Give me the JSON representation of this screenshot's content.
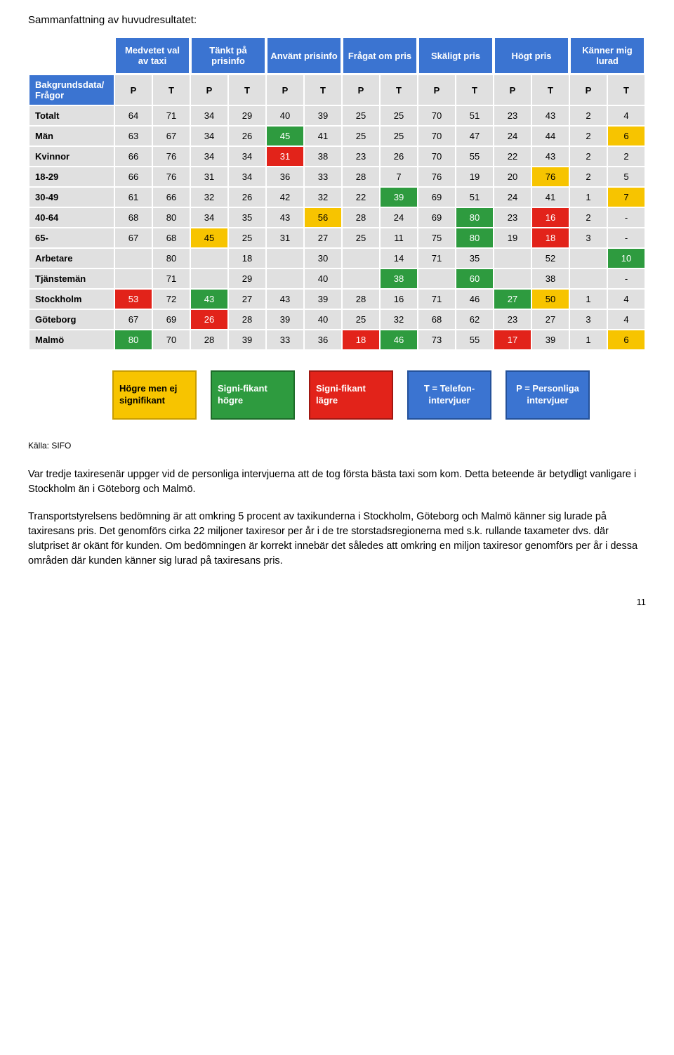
{
  "summary_title": "Sammanfattning av huvudresultatet:",
  "header_groups": [
    "Medvetet val av taxi",
    "Tänkt på prisinfo",
    "Använt prisinfo",
    "Frågat om pris",
    "Skäligt pris",
    "Högt pris",
    "Känner mig lurad"
  ],
  "row_label_header": "Bakgrundsdata/ Frågor",
  "pt_labels": [
    "P",
    "T",
    "P",
    "T",
    "P",
    "T",
    "P",
    "T",
    "P",
    "T",
    "P",
    "T",
    "P",
    "T"
  ],
  "rows": [
    {
      "label": "Totalt",
      "cells": [
        {
          "v": "64"
        },
        {
          "v": "71"
        },
        {
          "v": "34"
        },
        {
          "v": "29"
        },
        {
          "v": "40"
        },
        {
          "v": "39"
        },
        {
          "v": "25"
        },
        {
          "v": "25"
        },
        {
          "v": "70"
        },
        {
          "v": "51"
        },
        {
          "v": "23"
        },
        {
          "v": "43"
        },
        {
          "v": "2"
        },
        {
          "v": "4"
        }
      ]
    },
    {
      "label": "Män",
      "cells": [
        {
          "v": "63"
        },
        {
          "v": "67"
        },
        {
          "v": "34"
        },
        {
          "v": "26"
        },
        {
          "v": "45",
          "hl": "green"
        },
        {
          "v": "41"
        },
        {
          "v": "25"
        },
        {
          "v": "25"
        },
        {
          "v": "70"
        },
        {
          "v": "47"
        },
        {
          "v": "24"
        },
        {
          "v": "44"
        },
        {
          "v": "2"
        },
        {
          "v": "6",
          "hl": "yellow"
        }
      ]
    },
    {
      "label": "Kvinnor",
      "cells": [
        {
          "v": "66"
        },
        {
          "v": "76"
        },
        {
          "v": "34"
        },
        {
          "v": "34"
        },
        {
          "v": "31",
          "hl": "red"
        },
        {
          "v": "38"
        },
        {
          "v": "23"
        },
        {
          "v": "26"
        },
        {
          "v": "70"
        },
        {
          "v": "55"
        },
        {
          "v": "22"
        },
        {
          "v": "43"
        },
        {
          "v": "2"
        },
        {
          "v": "2"
        }
      ]
    },
    {
      "label": "18-29",
      "cells": [
        {
          "v": "66"
        },
        {
          "v": "76"
        },
        {
          "v": "31"
        },
        {
          "v": "34"
        },
        {
          "v": "36"
        },
        {
          "v": "33"
        },
        {
          "v": "28"
        },
        {
          "v": "7"
        },
        {
          "v": "76"
        },
        {
          "v": "19"
        },
        {
          "v": "20"
        },
        {
          "v": "76",
          "hl": "yellow"
        },
        {
          "v": "2"
        },
        {
          "v": "5"
        }
      ]
    },
    {
      "label": "30-49",
      "cells": [
        {
          "v": "61"
        },
        {
          "v": "66"
        },
        {
          "v": "32"
        },
        {
          "v": "26"
        },
        {
          "v": "42"
        },
        {
          "v": "32"
        },
        {
          "v": "22"
        },
        {
          "v": "39",
          "hl": "green"
        },
        {
          "v": "69"
        },
        {
          "v": "51"
        },
        {
          "v": "24"
        },
        {
          "v": "41"
        },
        {
          "v": "1"
        },
        {
          "v": "7",
          "hl": "yellow"
        }
      ]
    },
    {
      "label": "40-64",
      "cells": [
        {
          "v": "68"
        },
        {
          "v": "80"
        },
        {
          "v": "34"
        },
        {
          "v": "35"
        },
        {
          "v": "43"
        },
        {
          "v": "56",
          "hl": "yellow"
        },
        {
          "v": "28"
        },
        {
          "v": "24"
        },
        {
          "v": "69"
        },
        {
          "v": "80",
          "hl": "green"
        },
        {
          "v": "23"
        },
        {
          "v": "16",
          "hl": "red"
        },
        {
          "v": "2"
        },
        {
          "v": "-"
        }
      ]
    },
    {
      "label": "65-",
      "cells": [
        {
          "v": "67"
        },
        {
          "v": "68"
        },
        {
          "v": "45",
          "hl": "yellow"
        },
        {
          "v": "25"
        },
        {
          "v": "31"
        },
        {
          "v": "27"
        },
        {
          "v": "25"
        },
        {
          "v": "11"
        },
        {
          "v": "75"
        },
        {
          "v": "80",
          "hl": "green"
        },
        {
          "v": "19"
        },
        {
          "v": "18",
          "hl": "red"
        },
        {
          "v": "3"
        },
        {
          "v": "-"
        }
      ]
    },
    {
      "label": "Arbetare",
      "cells": [
        {
          "v": ""
        },
        {
          "v": "80"
        },
        {
          "v": ""
        },
        {
          "v": "18"
        },
        {
          "v": ""
        },
        {
          "v": "30"
        },
        {
          "v": ""
        },
        {
          "v": "14"
        },
        {
          "v": "71"
        },
        {
          "v": "35"
        },
        {
          "v": ""
        },
        {
          "v": "52"
        },
        {
          "v": ""
        },
        {
          "v": "10",
          "hl": "green"
        }
      ]
    },
    {
      "label": "Tjänstemän",
      "cells": [
        {
          "v": ""
        },
        {
          "v": "71"
        },
        {
          "v": ""
        },
        {
          "v": "29"
        },
        {
          "v": ""
        },
        {
          "v": "40"
        },
        {
          "v": ""
        },
        {
          "v": "38",
          "hl": "green"
        },
        {
          "v": ""
        },
        {
          "v": "60",
          "hl": "green"
        },
        {
          "v": ""
        },
        {
          "v": "38"
        },
        {
          "v": ""
        },
        {
          "v": "-"
        }
      ]
    },
    {
      "label": "Stockholm",
      "cells": [
        {
          "v": "53",
          "hl": "red"
        },
        {
          "v": "72"
        },
        {
          "v": "43",
          "hl": "green"
        },
        {
          "v": "27"
        },
        {
          "v": "43"
        },
        {
          "v": "39"
        },
        {
          "v": "28"
        },
        {
          "v": "16"
        },
        {
          "v": "71"
        },
        {
          "v": "46"
        },
        {
          "v": "27",
          "hl": "green"
        },
        {
          "v": "50",
          "hl": "yellow"
        },
        {
          "v": "1"
        },
        {
          "v": "4"
        }
      ]
    },
    {
      "label": "Göteborg",
      "cells": [
        {
          "v": "67"
        },
        {
          "v": "69"
        },
        {
          "v": "26",
          "hl": "red"
        },
        {
          "v": "28"
        },
        {
          "v": "39"
        },
        {
          "v": "40"
        },
        {
          "v": "25"
        },
        {
          "v": "32"
        },
        {
          "v": "68"
        },
        {
          "v": "62"
        },
        {
          "v": "23"
        },
        {
          "v": "27"
        },
        {
          "v": "3"
        },
        {
          "v": "4"
        }
      ]
    },
    {
      "label": "Malmö",
      "cells": [
        {
          "v": "80",
          "hl": "green"
        },
        {
          "v": "70"
        },
        {
          "v": "28"
        },
        {
          "v": "39"
        },
        {
          "v": "33"
        },
        {
          "v": "36"
        },
        {
          "v": "18",
          "hl": "red"
        },
        {
          "v": "46",
          "hl": "green"
        },
        {
          "v": "73"
        },
        {
          "v": "55"
        },
        {
          "v": "17",
          "hl": "red"
        },
        {
          "v": "39"
        },
        {
          "v": "1"
        },
        {
          "v": "6",
          "hl": "yellow"
        }
      ]
    }
  ],
  "legend": {
    "yellow": "Högre men ej signifikant",
    "green": "Signi-fikant högre",
    "red": "Signi-fikant lägre",
    "blue_t": "T = Telefon-intervjuer",
    "blue_p": "P = Personliga intervjuer"
  },
  "source": "Källa: SIFO",
  "para1": "Var tredje taxiresenär uppger vid de personliga intervjuerna att de tog första bästa taxi som kom. Detta beteende är betydligt vanligare i Stockholm än i Göteborg och Malmö.",
  "para2": "Transportstyrelsens bedömning är att omkring 5 procent av taxikunderna i Stockholm, Göteborg och Malmö känner sig lurade på taxiresans pris. Det genomförs cirka 22 miljoner taxiresor per år i de tre storstadsregionerna med s.k. rullande taxameter dvs. där slutpriset är okänt för kunden. Om bedömningen är korrekt innebär det således att omkring en miljon taxiresor genomförs per år i dessa områden där kunden känner sig lurad på taxiresans pris.",
  "page_num": "11",
  "colors": {
    "blue": "#3b74d1",
    "grey": "#e0e0e0",
    "green": "#2e9b3f",
    "red": "#e2231a",
    "yellow": "#f7c400"
  }
}
